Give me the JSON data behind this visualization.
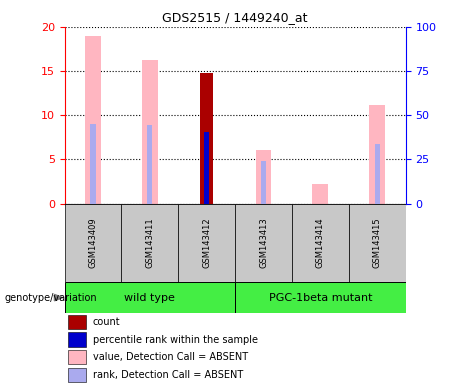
{
  "title": "GDS2515 / 1449240_at",
  "samples": [
    "GSM143409",
    "GSM143411",
    "GSM143412",
    "GSM143413",
    "GSM143414",
    "GSM143415"
  ],
  "value_absent": [
    19.0,
    16.3,
    null,
    6.1,
    2.2,
    11.1
  ],
  "rank_absent": [
    9.0,
    8.9,
    null,
    4.8,
    null,
    6.7
  ],
  "count_present": [
    null,
    null,
    14.8,
    null,
    null,
    null
  ],
  "percentile_rank_present": [
    null,
    null,
    8.1,
    null,
    null,
    null
  ],
  "ylim_left": [
    0,
    20
  ],
  "ylim_right": [
    0,
    100
  ],
  "yticks_left": [
    0,
    5,
    10,
    15,
    20
  ],
  "yticks_right": [
    0,
    25,
    50,
    75,
    100
  ],
  "color_count": "#AA0000",
  "color_percentile": "#0000CC",
  "color_value_absent": "#FFB6C1",
  "color_rank_absent": "#AAAAEE",
  "background_label": "#C8C8C8",
  "group_wt_color": "#44EE44",
  "group_pgc_color": "#44EE44",
  "genotype_label": "genotype/variation",
  "wt_label": "wild type",
  "pgc_label": "PGC-1beta mutant",
  "legend_items": [
    {
      "color": "#AA0000",
      "label": "count"
    },
    {
      "color": "#0000CC",
      "label": "percentile rank within the sample"
    },
    {
      "color": "#FFB6C1",
      "label": "value, Detection Call = ABSENT"
    },
    {
      "color": "#AAAAEE",
      "label": "rank, Detection Call = ABSENT"
    }
  ]
}
